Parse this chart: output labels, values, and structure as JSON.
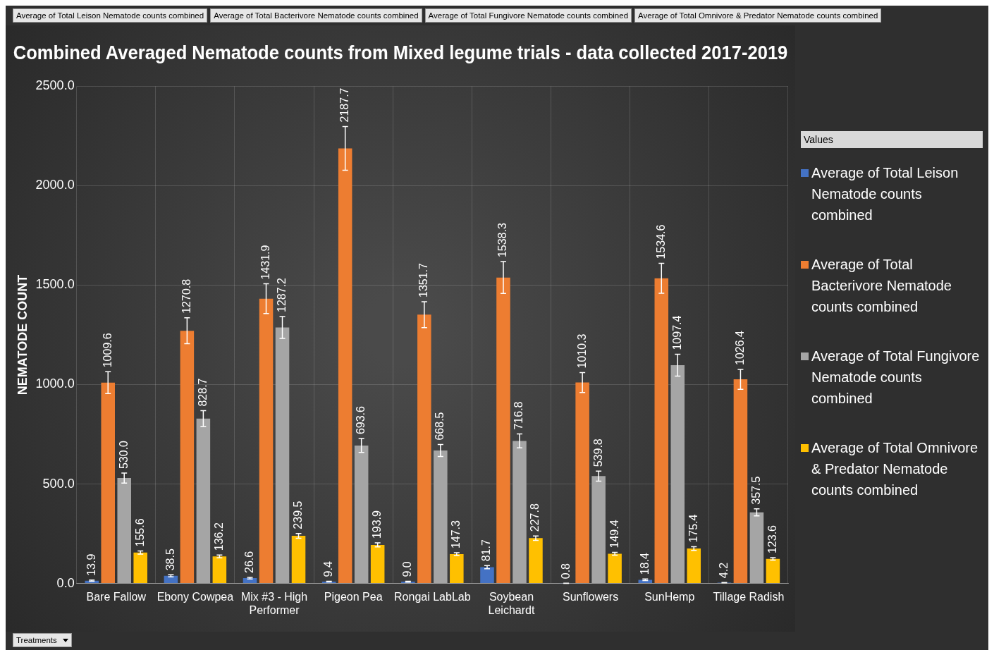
{
  "chart_data": {
    "type": "bar",
    "title": "Combined Averaged Nematode counts from Mixed legume trials - data collected 2017-2019",
    "ylabel": "NEMATODE COUNT",
    "legend_title": "Values",
    "categories": [
      "Bare Fallow",
      "Ebony Cowpea",
      "Mix #3 - High Performer",
      "Pigeon Pea",
      "Rongai LabLab",
      "Soybean Leichardt",
      "Sunflowers",
      "SunHemp",
      "Tillage Radish"
    ],
    "series": [
      {
        "name": "Average of Total Leison Nematode counts combined",
        "color": "#4472c4",
        "values": [
          13.9,
          38.5,
          26.6,
          9.4,
          9.0,
          81.7,
          0.8,
          18.4,
          4.2
        ],
        "value_labels": [
          "13.9",
          "38.5",
          "26.6",
          "9.4",
          "9.0",
          "81.7",
          "0.8",
          "18.4",
          "4.2"
        ],
        "errors": [
          3,
          5,
          4,
          2,
          2,
          8,
          0.5,
          4,
          1
        ]
      },
      {
        "name": "Average of Total Bacterivore Nematode counts combined",
        "color": "#ed7d31",
        "values": [
          1009.6,
          1270.8,
          1431.9,
          2187.7,
          1351.7,
          1538.3,
          1010.3,
          1534.6,
          1026.4
        ],
        "value_labels": [
          "1009.6",
          "1270.8",
          "1431.9",
          "2187.7",
          "1351.7",
          "1538.3",
          "1010.3",
          "1534.6",
          "1026.4"
        ],
        "errors": [
          55,
          65,
          75,
          110,
          65,
          80,
          50,
          75,
          50
        ]
      },
      {
        "name": "Average of Total Fungivore Nematode counts combined",
        "color": "#a5a5a5",
        "values": [
          530.0,
          828.7,
          1287.2,
          693.6,
          668.5,
          716.8,
          539.8,
          1097.4,
          357.5
        ],
        "value_labels": [
          "530.0",
          "828.7",
          "1287.2",
          "693.6",
          "668.5",
          "716.8",
          "539.8",
          "1097.4",
          "357.5"
        ],
        "errors": [
          25,
          40,
          55,
          35,
          30,
          35,
          25,
          55,
          18
        ]
      },
      {
        "name": "Average of Total Omnivore & Predator Nematode counts combined",
        "color": "#ffc000",
        "values": [
          155.6,
          136.2,
          239.5,
          193.9,
          147.3,
          227.8,
          149.4,
          175.4,
          123.6
        ],
        "value_labels": [
          "155.6",
          "136.2",
          "239.5",
          "193.9",
          "147.3",
          "227.8",
          "149.4",
          "175.4",
          "123.6"
        ],
        "errors": [
          8,
          7,
          12,
          10,
          7,
          11,
          7,
          9,
          6
        ]
      }
    ],
    "ylim": [
      0,
      2500
    ],
    "yticks": [
      {
        "value": 0,
        "label": "0.0"
      },
      {
        "value": 500,
        "label": "500.0"
      },
      {
        "value": 1000,
        "label": "1000.0"
      },
      {
        "value": 1500,
        "label": "1500.0"
      },
      {
        "value": 2000,
        "label": "2000.0"
      },
      {
        "value": 2500,
        "label": "2500.0"
      }
    ],
    "grid": true,
    "legend": "right",
    "annotations": [
      "Average of Total Leison Nematode counts combined",
      "Average of Total Bacterivore Nematode counts combined",
      "Average of Total Fungivore Nematode counts combined",
      "Average of Total Omnivore & Predator Nematode counts combined",
      "Treatments"
    ]
  }
}
